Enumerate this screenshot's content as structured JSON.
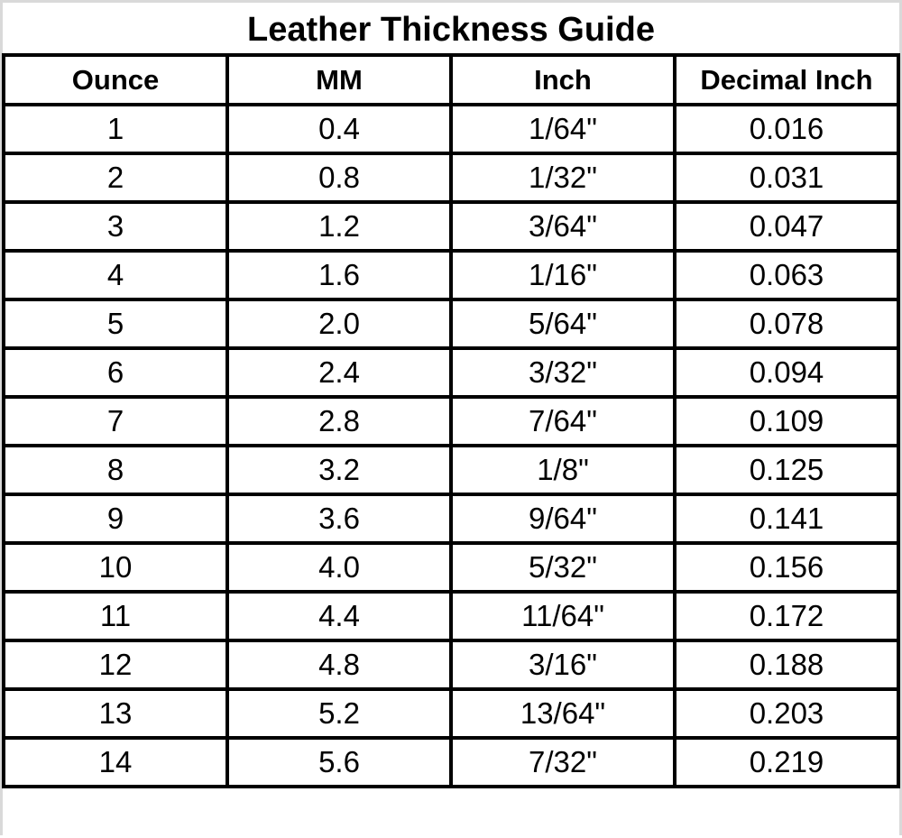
{
  "title": "Leather Thickness Guide",
  "columns": [
    "Ounce",
    "MM",
    "Inch",
    "Decimal Inch"
  ],
  "rows": [
    [
      "1",
      "0.4",
      "1/64\"",
      "0.016"
    ],
    [
      "2",
      "0.8",
      "1/32\"",
      "0.031"
    ],
    [
      "3",
      "1.2",
      "3/64\"",
      "0.047"
    ],
    [
      "4",
      "1.6",
      "1/16\"",
      "0.063"
    ],
    [
      "5",
      "2.0",
      "5/64\"",
      "0.078"
    ],
    [
      "6",
      "2.4",
      "3/32\"",
      "0.094"
    ],
    [
      "7",
      "2.8",
      "7/64\"",
      "0.109"
    ],
    [
      "8",
      "3.2",
      "1/8\"",
      "0.125"
    ],
    [
      "9",
      "3.6",
      "9/64\"",
      "0.141"
    ],
    [
      "10",
      "4.0",
      "5/32\"",
      "0.156"
    ],
    [
      "11",
      "4.4",
      "11/64\"",
      "0.172"
    ],
    [
      "12",
      "4.8",
      "3/16\"",
      "0.188"
    ],
    [
      "13",
      "5.2",
      "13/64\"",
      "0.203"
    ],
    [
      "14",
      "5.6",
      "7/32\"",
      "0.219"
    ]
  ]
}
